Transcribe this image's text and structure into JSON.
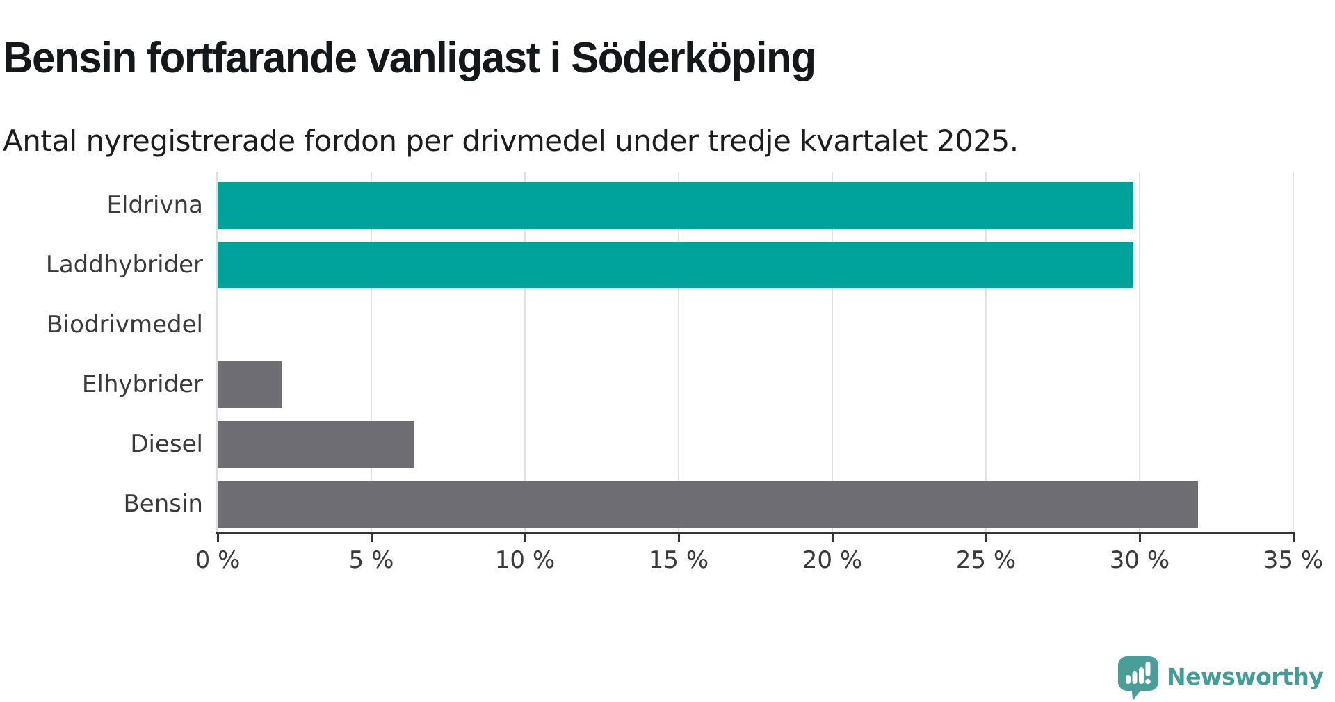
{
  "header": {
    "title": "Bensin fortfarande vanligast i Söderköping",
    "subtitle": "Antal nyregistrerade fordon per drivmedel under tredje kvartalet 2025."
  },
  "chart_data": {
    "type": "bar",
    "orientation": "horizontal",
    "title": "Bensin fortfarande vanligast i Söderköping",
    "subtitle": "Antal nyregistrerade fordon per drivmedel under tredje kvartalet 2025.",
    "categories": [
      "Eldrivna",
      "Laddhybrider",
      "Biodrivmedel",
      "Elhybrider",
      "Diesel",
      "Bensin"
    ],
    "values": [
      29.8,
      29.8,
      0,
      2.1,
      6.4,
      31.9
    ],
    "unit": "%",
    "bar_colors": [
      "#00a39b",
      "#00a39b",
      "#6d6d73",
      "#6d6d73",
      "#6d6d73",
      "#6d6d73"
    ],
    "highlight_color": "#00a39b",
    "base_color": "#6d6d73",
    "xlabel": "",
    "ylabel": "",
    "xlim": [
      0,
      35
    ],
    "x_ticks": [
      0,
      5,
      10,
      15,
      20,
      25,
      30,
      35
    ],
    "x_tick_labels": [
      "0 %",
      "5 %",
      "10 %",
      "15 %",
      "20 %",
      "25 %",
      "30 %",
      "35 %"
    ],
    "grid": "vertical-light",
    "grid_color": "#e2e2e2",
    "axis_color": "#333333",
    "label_color": "#3a3a3a",
    "legend": "none"
  },
  "branding": {
    "logo_text": "Newsworthy",
    "logo_icon": "newsworthy-speech-bubble-barchart-icon",
    "logo_color": "#3f9e98"
  }
}
